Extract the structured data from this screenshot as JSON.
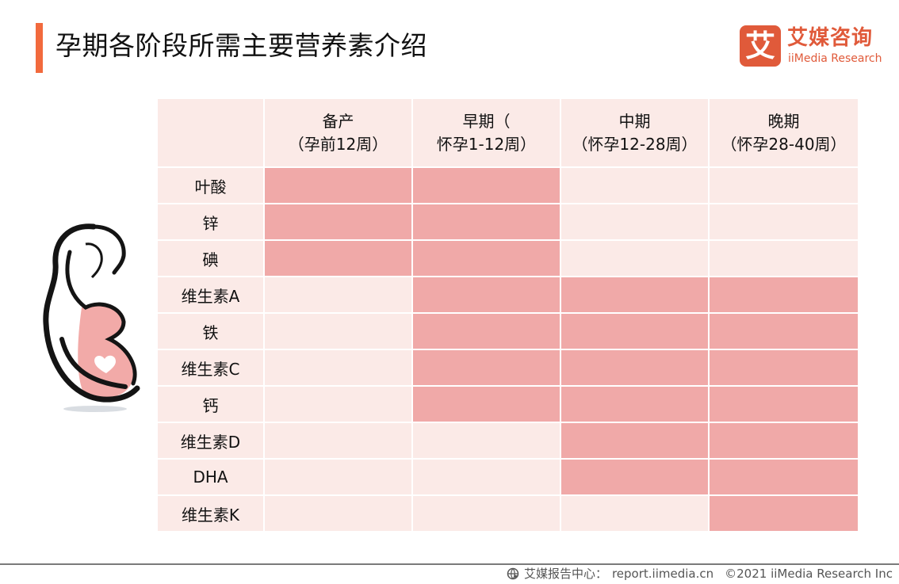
{
  "header": {
    "title": "孕期各阶段所需主要营养素介绍",
    "accent_color": "#f26a3d"
  },
  "logo": {
    "mark": "艾",
    "name_cn": "艾媒咨询",
    "name_en": "iiMedia Research",
    "color": "#e05a3a"
  },
  "table": {
    "columns": [
      {
        "line1": "备产",
        "line2": "（孕前12周）"
      },
      {
        "line1": "早期（",
        "line2": "怀孕1-12周）"
      },
      {
        "line1": "中期",
        "line2": "（怀孕12-28周）"
      },
      {
        "line1": "晚期",
        "line2": "（怀孕28-40周）"
      }
    ],
    "rows": [
      {
        "label": "叶酸",
        "needed": [
          true,
          true,
          false,
          false
        ]
      },
      {
        "label": "锌",
        "needed": [
          true,
          true,
          false,
          false
        ]
      },
      {
        "label": "碘",
        "needed": [
          true,
          true,
          false,
          false
        ]
      },
      {
        "label": "维生素A",
        "needed": [
          false,
          true,
          true,
          true
        ]
      },
      {
        "label": "铁",
        "needed": [
          false,
          true,
          true,
          true
        ]
      },
      {
        "label": "维生素C",
        "needed": [
          false,
          true,
          true,
          true
        ]
      },
      {
        "label": "钙",
        "needed": [
          false,
          true,
          true,
          true
        ]
      },
      {
        "label": "维生素D",
        "needed": [
          false,
          false,
          true,
          true
        ]
      },
      {
        "label": "DHA",
        "needed": [
          false,
          false,
          true,
          true
        ]
      },
      {
        "label": "维生素K",
        "needed": [
          false,
          false,
          false,
          true
        ]
      }
    ],
    "colors": {
      "needed": "#f0a9a8",
      "not_needed": "#fbeae7"
    }
  },
  "chart_data": {
    "type": "table",
    "title": "孕期各阶段所需主要营养素介绍",
    "categories": [
      "备产（孕前12周）",
      "早期（怀孕1-12周）",
      "中期（怀孕12-28周）",
      "晚期（怀孕28-40周）"
    ],
    "series": [
      {
        "name": "叶酸",
        "values": [
          1,
          1,
          0,
          0
        ]
      },
      {
        "name": "锌",
        "values": [
          1,
          1,
          0,
          0
        ]
      },
      {
        "name": "碘",
        "values": [
          1,
          1,
          0,
          0
        ]
      },
      {
        "name": "维生素A",
        "values": [
          0,
          1,
          1,
          1
        ]
      },
      {
        "name": "铁",
        "values": [
          0,
          1,
          1,
          1
        ]
      },
      {
        "name": "维生素C",
        "values": [
          0,
          1,
          1,
          1
        ]
      },
      {
        "name": "钙",
        "values": [
          0,
          1,
          1,
          1
        ]
      },
      {
        "name": "维生素D",
        "values": [
          0,
          0,
          1,
          1
        ]
      },
      {
        "name": "DHA",
        "values": [
          0,
          0,
          1,
          1
        ]
      },
      {
        "name": "维生素K",
        "values": [
          0,
          0,
          0,
          1
        ]
      }
    ],
    "legend": "shaded cell = nutrient needed in that stage"
  },
  "illustration": {
    "icon": "pregnant-woman-illustration"
  },
  "footer": {
    "icon": "globe-cursor-icon",
    "source_label": "艾媒报告中心：",
    "source_url": "report.iimedia.cn",
    "copyright": "©2021  iiMedia Research  Inc"
  }
}
